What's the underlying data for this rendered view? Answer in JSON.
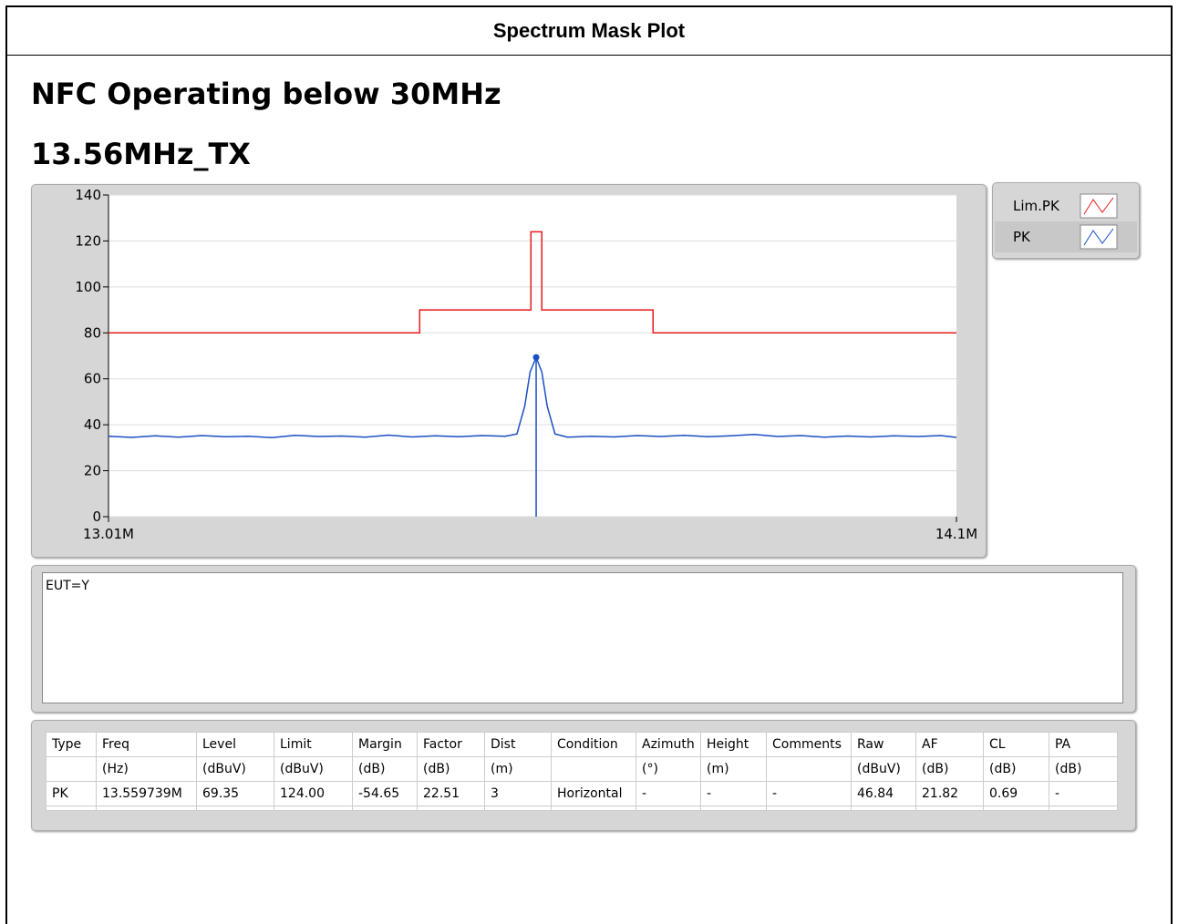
{
  "header": {
    "title": "Spectrum Mask Plot"
  },
  "headings": [
    "NFC Operating below 30MHz",
    "13.56MHz_TX"
  ],
  "chart_data": {
    "type": "line",
    "xlim": [
      13010000,
      14100000
    ],
    "xticks": [
      {
        "value": 13010000,
        "label": "13.01M"
      },
      {
        "value": 14100000,
        "label": "14.1M"
      }
    ],
    "ylim": [
      0,
      140
    ],
    "yticks": [
      0,
      20,
      40,
      60,
      80,
      100,
      120,
      140
    ],
    "grid": true,
    "series": [
      {
        "name": "Lim.PK",
        "color": "#e8191a",
        "x": [
          13010000,
          13410000,
          13410000,
          13553000,
          13553000,
          13567000,
          13567000,
          13710000,
          13710000,
          14100000
        ],
        "values": [
          80,
          80,
          90,
          90,
          124,
          124,
          90,
          90,
          80,
          80
        ]
      },
      {
        "name": "PK",
        "color": "#1a4fc4",
        "x": [
          13010000,
          13040000,
          13070000,
          13100000,
          13130000,
          13160000,
          13190000,
          13220000,
          13250000,
          13280000,
          13310000,
          13340000,
          13370000,
          13400000,
          13430000,
          13460000,
          13490000,
          13520000,
          13535000,
          13545000,
          13552000,
          13559739,
          13567000,
          13574000,
          13584000,
          13600000,
          13630000,
          13660000,
          13690000,
          13720000,
          13750000,
          13780000,
          13810000,
          13840000,
          13870000,
          13900000,
          13930000,
          13960000,
          13990000,
          14020000,
          14050000,
          14080000,
          14100000
        ],
        "values": [
          35,
          34.5,
          35.2,
          34.6,
          35.3,
          34.8,
          35,
          34.4,
          35.4,
          34.9,
          35.1,
          34.6,
          35.5,
          34.7,
          35.2,
          34.8,
          35.3,
          35,
          36,
          48,
          63,
          69.35,
          63,
          48,
          36,
          34.6,
          35,
          34.7,
          35.3,
          34.9,
          35.4,
          34.8,
          35.2,
          35.8,
          34.9,
          35.3,
          34.6,
          35.1,
          34.7,
          35.2,
          34.9,
          35.3,
          34.5
        ]
      }
    ],
    "marker": {
      "x": 13559739,
      "y": 69.35
    }
  },
  "note": "EUT=Y",
  "table": {
    "rows": [
      [
        "Type",
        "Freq",
        "Level",
        "Limit",
        "Margin",
        "Factor",
        "Dist",
        "Condition",
        "Azimuth",
        "Height",
        "Comments",
        "Raw",
        "AF",
        "CL",
        "PA"
      ],
      [
        null,
        "(Hz)",
        "(dBuV)",
        "(dBuV)",
        "(dB)",
        "(dB)",
        "(m)",
        null,
        "(°)",
        "(m)",
        null,
        "(dBuV)",
        "(dB)",
        "(dB)",
        "(dB)"
      ],
      [
        "PK",
        "13.559739M",
        "69.35",
        "124.00",
        "-54.65",
        "22.51",
        "3",
        "Horizontal",
        "-",
        "-",
        "-",
        "46.84",
        "21.82",
        "0.69",
        "-"
      ]
    ]
  }
}
